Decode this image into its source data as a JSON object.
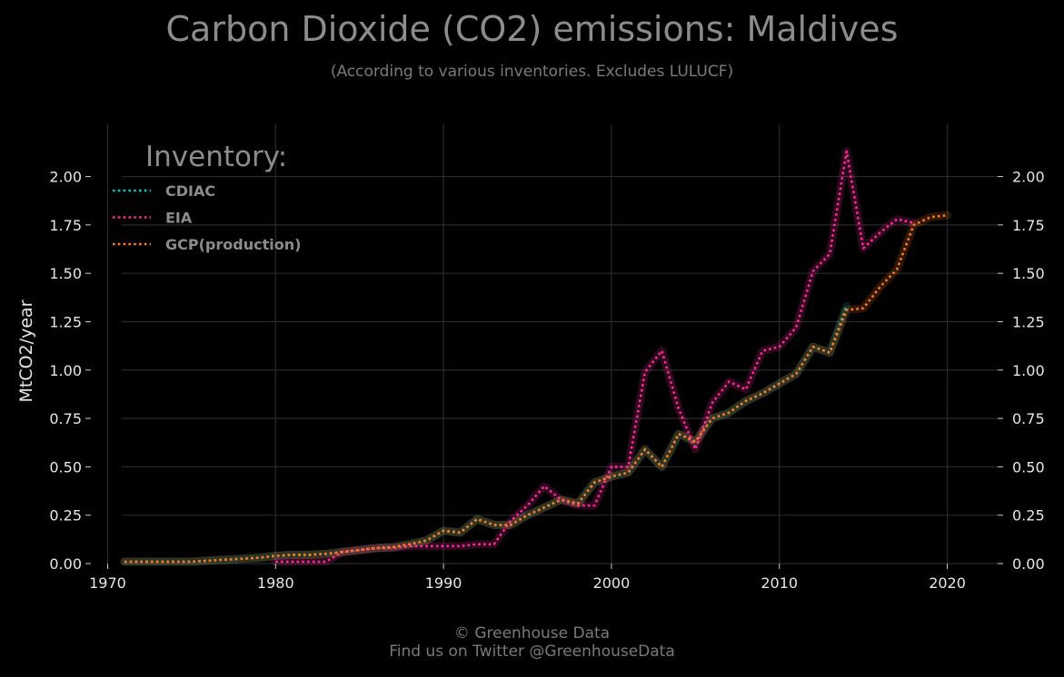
{
  "title": "Carbon Dioxide (CO2) emissions: Maldives",
  "subtitle": "(According to various inventories. Excludes LULUCF)",
  "footer": {
    "line1": "© Greenhouse Data",
    "line2": "Find us on Twitter @GreenhouseData"
  },
  "chart_data": {
    "type": "line",
    "ylabel": "MtCO2/year",
    "xlim": [
      1969,
      2023
    ],
    "ylim": [
      0,
      2.27
    ],
    "x_ticks": [
      1970,
      1980,
      1990,
      2000,
      2010,
      2020
    ],
    "y_ticks": [
      0,
      0.25,
      0.5,
      0.75,
      1.0,
      1.25,
      1.5,
      1.75,
      2.0
    ],
    "y_tick_labels": [
      "0.00",
      "0.25",
      "0.50",
      "0.75",
      "1.00",
      "1.25",
      "1.50",
      "1.75",
      "2.00"
    ],
    "grid": true,
    "legend": {
      "title": "Inventory:",
      "position": "top-left"
    },
    "series": [
      {
        "name": "CDIAC",
        "color": "#00c8d2",
        "x": [
          1971,
          1972,
          1973,
          1974,
          1975,
          1976,
          1977,
          1978,
          1979,
          1980,
          1981,
          1982,
          1983,
          1984,
          1985,
          1986,
          1987,
          1988,
          1989,
          1990,
          1991,
          1992,
          1993,
          1994,
          1995,
          1996,
          1997,
          1998,
          1999,
          2000,
          2001,
          2002,
          2003,
          2004,
          2005,
          2006,
          2007,
          2008,
          2009,
          2010,
          2011,
          2012,
          2013,
          2014
        ],
        "y": [
          0.01,
          0.01,
          0.01,
          0.01,
          0.01,
          0.015,
          0.02,
          0.025,
          0.03,
          0.04,
          0.045,
          0.045,
          0.05,
          0.06,
          0.07,
          0.08,
          0.085,
          0.1,
          0.12,
          0.17,
          0.16,
          0.23,
          0.2,
          0.2,
          0.25,
          0.29,
          0.33,
          0.31,
          0.42,
          0.45,
          0.47,
          0.59,
          0.5,
          0.67,
          0.63,
          0.75,
          0.78,
          0.84,
          0.88,
          0.93,
          0.98,
          1.12,
          1.09,
          1.33
        ]
      },
      {
        "name": "EIA",
        "color": "#ff2a9a",
        "x": [
          1980,
          1981,
          1982,
          1983,
          1984,
          1985,
          1986,
          1987,
          1988,
          1989,
          1990,
          1991,
          1992,
          1993,
          1994,
          1995,
          1996,
          1997,
          1998,
          1999,
          2000,
          2001,
          2002,
          2003,
          2004,
          2005,
          2006,
          2007,
          2008,
          2009,
          2010,
          2011,
          2012,
          2013,
          2014,
          2015,
          2016,
          2017,
          2018
        ],
        "y": [
          0.01,
          0.01,
          0.01,
          0.01,
          0.06,
          0.07,
          0.08,
          0.08,
          0.09,
          0.09,
          0.09,
          0.09,
          0.1,
          0.1,
          0.22,
          0.3,
          0.4,
          0.33,
          0.3,
          0.3,
          0.5,
          0.5,
          0.99,
          1.1,
          0.8,
          0.59,
          0.83,
          0.94,
          0.9,
          1.1,
          1.12,
          1.22,
          1.51,
          1.6,
          2.13,
          1.63,
          1.71,
          1.78,
          1.76
        ]
      },
      {
        "name": "GCP(production)",
        "color": "#ff7a1a",
        "x": [
          1971,
          1972,
          1973,
          1974,
          1975,
          1976,
          1977,
          1978,
          1979,
          1980,
          1981,
          1982,
          1983,
          1984,
          1985,
          1986,
          1987,
          1988,
          1989,
          1990,
          1991,
          1992,
          1993,
          1994,
          1995,
          1996,
          1997,
          1998,
          1999,
          2000,
          2001,
          2002,
          2003,
          2004,
          2005,
          2006,
          2007,
          2008,
          2009,
          2010,
          2011,
          2012,
          2013,
          2014,
          2015,
          2016,
          2017,
          2018,
          2019,
          2020
        ],
        "y": [
          0.01,
          0.01,
          0.01,
          0.01,
          0.01,
          0.015,
          0.02,
          0.025,
          0.03,
          0.04,
          0.045,
          0.045,
          0.05,
          0.06,
          0.07,
          0.08,
          0.085,
          0.1,
          0.12,
          0.17,
          0.16,
          0.23,
          0.2,
          0.2,
          0.25,
          0.29,
          0.33,
          0.31,
          0.42,
          0.45,
          0.47,
          0.59,
          0.5,
          0.67,
          0.63,
          0.75,
          0.78,
          0.84,
          0.88,
          0.93,
          0.98,
          1.12,
          1.09,
          1.31,
          1.32,
          1.43,
          1.52,
          1.75,
          1.79,
          1.8
        ]
      }
    ]
  }
}
